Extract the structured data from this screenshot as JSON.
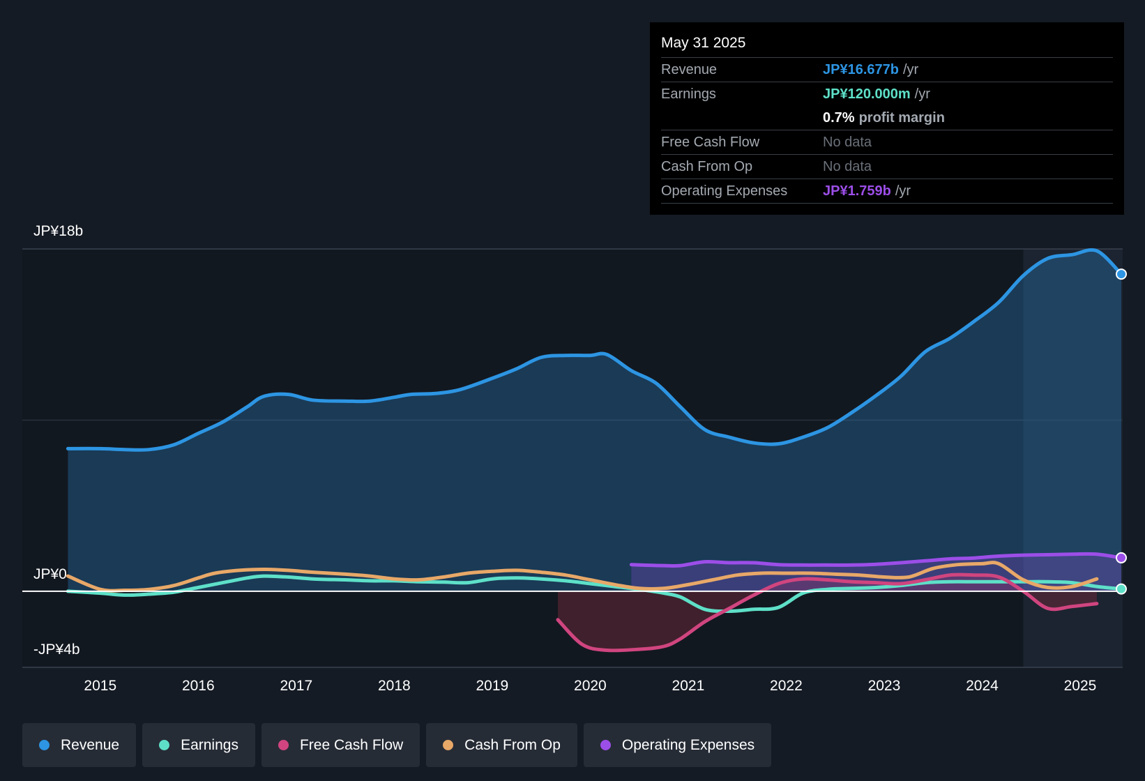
{
  "chart_data": {
    "type": "line",
    "currency": "JP¥",
    "y_labels": {
      "top": "JP¥18b",
      "zero": "JP¥0",
      "bottom": "-JP¥4b"
    },
    "ylim": [
      -4,
      18
    ],
    "x_range": [
      2014.66,
      2025.42
    ],
    "x_ticks": [
      "2015",
      "2016",
      "2017",
      "2018",
      "2019",
      "2020",
      "2021",
      "2022",
      "2023",
      "2024",
      "2025"
    ],
    "highlight_start": 2024.42,
    "series": [
      {
        "name": "Revenue",
        "color": "#2d95e3",
        "fill": true,
        "x": [
          2014.67,
          2015.0,
          2015.25,
          2015.5,
          2015.75,
          2016.0,
          2016.25,
          2016.5,
          2016.67,
          2016.92,
          2017.17,
          2017.5,
          2017.75,
          2018.0,
          2018.17,
          2018.42,
          2018.67,
          2019.0,
          2019.25,
          2019.5,
          2019.75,
          2020.0,
          2020.17,
          2020.42,
          2020.67,
          2020.92,
          2021.17,
          2021.42,
          2021.67,
          2021.92,
          2022.17,
          2022.42,
          2022.67,
          2022.92,
          2023.17,
          2023.42,
          2023.67,
          2023.92,
          2024.17,
          2024.42,
          2024.67,
          2024.92,
          2025.17,
          2025.42
        ],
        "y": [
          7.5,
          7.5,
          7.45,
          7.45,
          7.7,
          8.3,
          8.9,
          9.7,
          10.25,
          10.35,
          10.05,
          10.0,
          10.0,
          10.2,
          10.35,
          10.4,
          10.6,
          11.2,
          11.7,
          12.3,
          12.4,
          12.4,
          12.45,
          11.6,
          10.95,
          9.7,
          8.5,
          8.1,
          7.8,
          7.75,
          8.1,
          8.6,
          9.4,
          10.3,
          11.3,
          12.6,
          13.3,
          14.2,
          15.2,
          16.6,
          17.5,
          17.7,
          17.9,
          16.677
        ]
      },
      {
        "name": "Earnings",
        "color": "#5ee0c8",
        "x": [
          2014.67,
          2015.0,
          2015.25,
          2015.5,
          2015.75,
          2016.0,
          2016.25,
          2016.5,
          2016.67,
          2016.92,
          2017.17,
          2017.5,
          2017.75,
          2018.0,
          2018.25,
          2018.5,
          2018.75,
          2019.0,
          2019.25,
          2019.5,
          2019.75,
          2020.0,
          2020.25,
          2020.5,
          2020.75,
          2020.92,
          2021.17,
          2021.42,
          2021.67,
          2021.92,
          2022.17,
          2022.42,
          2022.67,
          2022.92,
          2023.17,
          2023.42,
          2023.67,
          2023.92,
          2024.17,
          2024.42,
          2024.67,
          2024.92,
          2025.17,
          2025.42
        ],
        "y": [
          0.0,
          -0.1,
          -0.2,
          -0.15,
          -0.05,
          0.2,
          0.45,
          0.7,
          0.8,
          0.75,
          0.65,
          0.6,
          0.55,
          0.55,
          0.5,
          0.48,
          0.45,
          0.65,
          0.7,
          0.65,
          0.55,
          0.4,
          0.25,
          0.1,
          -0.1,
          -0.3,
          -0.95,
          -1.05,
          -0.95,
          -0.85,
          -0.1,
          0.1,
          0.15,
          0.2,
          0.3,
          0.45,
          0.5,
          0.5,
          0.5,
          0.5,
          0.5,
          0.45,
          0.25,
          0.12
        ]
      },
      {
        "name": "Free Cash Flow",
        "color": "#d0457f",
        "fill_negative": true,
        "x": [
          2019.67,
          2019.92,
          2020.17,
          2020.5,
          2020.75,
          2020.92,
          2021.17,
          2021.42,
          2021.67,
          2021.92,
          2022.17,
          2022.42,
          2022.67,
          2022.92,
          2023.17,
          2023.42,
          2023.67,
          2023.92,
          2024.17,
          2024.42,
          2024.67,
          2024.92,
          2025.17
        ],
        "y": [
          -1.5,
          -2.8,
          -3.1,
          -3.05,
          -2.9,
          -2.5,
          -1.6,
          -0.9,
          -0.2,
          0.4,
          0.65,
          0.6,
          0.5,
          0.45,
          0.4,
          0.6,
          0.85,
          0.85,
          0.75,
          0.0,
          -0.9,
          -0.8,
          -0.65
        ]
      },
      {
        "name": "Cash From Op",
        "color": "#e8a868",
        "x": [
          2014.67,
          2015.0,
          2015.25,
          2015.5,
          2015.75,
          2016.0,
          2016.17,
          2016.42,
          2016.67,
          2016.92,
          2017.17,
          2017.5,
          2017.75,
          2018.0,
          2018.25,
          2018.5,
          2018.75,
          2019.0,
          2019.25,
          2019.5,
          2019.75,
          2020.0,
          2020.25,
          2020.5,
          2020.75,
          2021.0,
          2021.25,
          2021.5,
          2021.75,
          2022.0,
          2022.25,
          2022.5,
          2022.75,
          2023.0,
          2023.25,
          2023.5,
          2023.75,
          2024.0,
          2024.17,
          2024.42,
          2024.67,
          2024.92,
          2025.17
        ],
        "y": [
          0.8,
          0.1,
          0.05,
          0.1,
          0.3,
          0.7,
          0.95,
          1.1,
          1.15,
          1.1,
          1.0,
          0.9,
          0.8,
          0.65,
          0.6,
          0.75,
          0.95,
          1.05,
          1.1,
          1.0,
          0.85,
          0.6,
          0.35,
          0.15,
          0.15,
          0.35,
          0.6,
          0.85,
          0.95,
          0.95,
          0.95,
          0.9,
          0.85,
          0.75,
          0.75,
          1.2,
          1.4,
          1.45,
          1.45,
          0.6,
          0.2,
          0.25,
          0.65
        ]
      },
      {
        "name": "Operating Expenses",
        "color": "#9c4ee8",
        "fill": true,
        "x": [
          2020.42,
          2020.75,
          2020.92,
          2021.17,
          2021.42,
          2021.67,
          2021.92,
          2022.17,
          2022.42,
          2022.67,
          2022.92,
          2023.17,
          2023.42,
          2023.67,
          2023.92,
          2024.17,
          2024.42,
          2024.67,
          2024.92,
          2025.17,
          2025.42
        ],
        "y": [
          1.4,
          1.35,
          1.35,
          1.55,
          1.5,
          1.5,
          1.4,
          1.38,
          1.38,
          1.38,
          1.42,
          1.5,
          1.6,
          1.7,
          1.75,
          1.85,
          1.9,
          1.92,
          1.95,
          1.95,
          1.759
        ]
      }
    ]
  },
  "tooltip": {
    "date": "May 31 2025",
    "revenue_label": "Revenue",
    "revenue_value": "JP¥16.677b",
    "revenue_unit": "/yr",
    "earnings_label": "Earnings",
    "earnings_value": "JP¥120.000m",
    "earnings_unit": "/yr",
    "margin_value": "0.7%",
    "margin_label": "profit margin",
    "fcf_label": "Free Cash Flow",
    "fcf_value": "No data",
    "cfo_label": "Cash From Op",
    "cfo_value": "No data",
    "opex_label": "Operating Expenses",
    "opex_value": "JP¥1.759b",
    "opex_unit": "/yr"
  },
  "legend": [
    {
      "label": "Revenue",
      "color": "#2d95e3"
    },
    {
      "label": "Earnings",
      "color": "#5ee0c8"
    },
    {
      "label": "Free Cash Flow",
      "color": "#d0457f"
    },
    {
      "label": "Cash From Op",
      "color": "#e8a868"
    },
    {
      "label": "Operating Expenses",
      "color": "#9c4ee8"
    }
  ]
}
